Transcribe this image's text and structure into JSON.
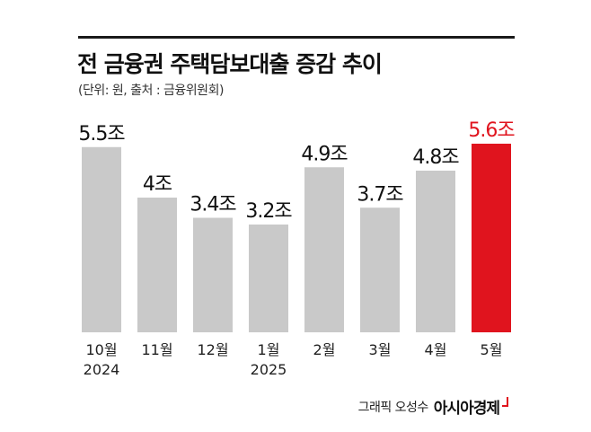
{
  "chart_data": {
    "type": "bar",
    "title": "전 금융권 주택담보대출 증감 추이",
    "subtitle": "(단위: 원, 출처 : 금융위원회)",
    "categories": [
      [
        "10월",
        "2024"
      ],
      [
        "11월"
      ],
      [
        "12월"
      ],
      [
        "1월",
        "2025"
      ],
      [
        "2월"
      ],
      [
        "3월"
      ],
      [
        "4월"
      ],
      [
        "5월"
      ]
    ],
    "values": [
      5.5,
      4,
      3.4,
      3.2,
      4.9,
      3.7,
      4.8,
      5.6
    ],
    "value_labels": [
      "5.5조",
      "4조",
      "3.4조",
      "3.2조",
      "4.9조",
      "3.7조",
      "4.8조",
      "5.6조"
    ],
    "unit": "조",
    "highlight_index": 7,
    "colors": {
      "bar": "#c9c9c9",
      "highlight": "#e0141e",
      "text": "#111111"
    },
    "grid": false,
    "legend": "none"
  },
  "credit": {
    "text": "그래픽 오성수",
    "brand": "아시아경제"
  }
}
